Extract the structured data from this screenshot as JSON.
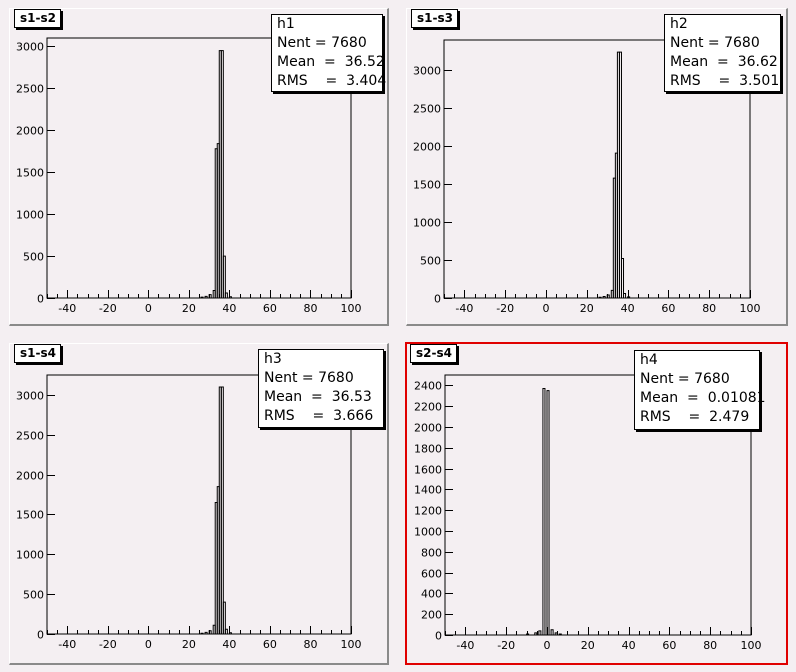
{
  "chart_data": [
    {
      "type": "histogram",
      "title": "s1-s2",
      "stats": {
        "name": "h1",
        "nent": "7680",
        "mean": "36.52",
        "rms": "3.404"
      },
      "xlim": [
        -50,
        100
      ],
      "ylim": [
        0,
        3100
      ],
      "x_ticks": [
        -40,
        -20,
        0,
        20,
        40,
        60,
        80,
        100
      ],
      "y_ticks": [
        0,
        500,
        1000,
        1500,
        2000,
        2500,
        3000
      ],
      "bins": [
        [
          26,
          10
        ],
        [
          28,
          20
        ],
        [
          30,
          40
        ],
        [
          32,
          90
        ],
        [
          33,
          1780
        ],
        [
          34,
          1840
        ],
        [
          35,
          2950
        ],
        [
          36,
          2950
        ],
        [
          37,
          500
        ],
        [
          38,
          60
        ],
        [
          40,
          15
        ]
      ]
    },
    {
      "type": "histogram",
      "title": "s1-s3",
      "stats": {
        "name": "h2",
        "nent": "7680",
        "mean": "36.62",
        "rms": "3.501"
      },
      "xlim": [
        -50,
        100
      ],
      "ylim": [
        0,
        3400
      ],
      "x_ticks": [
        -40,
        -20,
        0,
        20,
        40,
        60,
        80,
        100
      ],
      "y_ticks": [
        0,
        500,
        1000,
        1500,
        2000,
        2500,
        3000
      ],
      "bins": [
        [
          26,
          10
        ],
        [
          28,
          20
        ],
        [
          30,
          40
        ],
        [
          32,
          100
        ],
        [
          33,
          1580
        ],
        [
          34,
          1910
        ],
        [
          35,
          3240
        ],
        [
          36,
          3240
        ],
        [
          37,
          520
        ],
        [
          38,
          60
        ],
        [
          40,
          15
        ]
      ]
    },
    {
      "type": "histogram",
      "title": "s1-s4",
      "stats": {
        "name": "h3",
        "nent": "7680",
        "mean": "36.53",
        "rms": "3.666"
      },
      "xlim": [
        -50,
        100
      ],
      "ylim": [
        0,
        3250
      ],
      "x_ticks": [
        -40,
        -20,
        0,
        20,
        40,
        60,
        80,
        100
      ],
      "y_ticks": [
        0,
        500,
        1000,
        1500,
        2000,
        2500,
        3000
      ],
      "bins": [
        [
          26,
          10
        ],
        [
          28,
          20
        ],
        [
          30,
          40
        ],
        [
          32,
          110
        ],
        [
          33,
          1650
        ],
        [
          34,
          1850
        ],
        [
          35,
          3100
        ],
        [
          36,
          3100
        ],
        [
          37,
          400
        ],
        [
          38,
          60
        ],
        [
          40,
          15
        ]
      ]
    },
    {
      "type": "histogram",
      "title": "s2-s4",
      "stats": {
        "name": "h4",
        "nent": "7680",
        "mean": "0.01081",
        "rms": "2.479"
      },
      "xlim": [
        -50,
        100
      ],
      "ylim": [
        0,
        2500
      ],
      "x_ticks": [
        -40,
        -20,
        0,
        20,
        40,
        60,
        80,
        100
      ],
      "y_ticks": [
        0,
        200,
        400,
        600,
        800,
        1000,
        1200,
        1400,
        1600,
        1800,
        2000,
        2200,
        2400
      ],
      "bins": [
        [
          -10,
          10
        ],
        [
          -6,
          20
        ],
        [
          -4,
          40
        ],
        [
          -2,
          2370
        ],
        [
          0,
          2350
        ],
        [
          2,
          50
        ],
        [
          4,
          20
        ],
        [
          6,
          10
        ]
      ]
    }
  ],
  "labels": {
    "nent": "Nent",
    "mean": "Mean",
    "rms": "RMS"
  },
  "colors": {
    "line": "#000000",
    "pad": "#f4eff2",
    "active_border": "#e00000"
  }
}
